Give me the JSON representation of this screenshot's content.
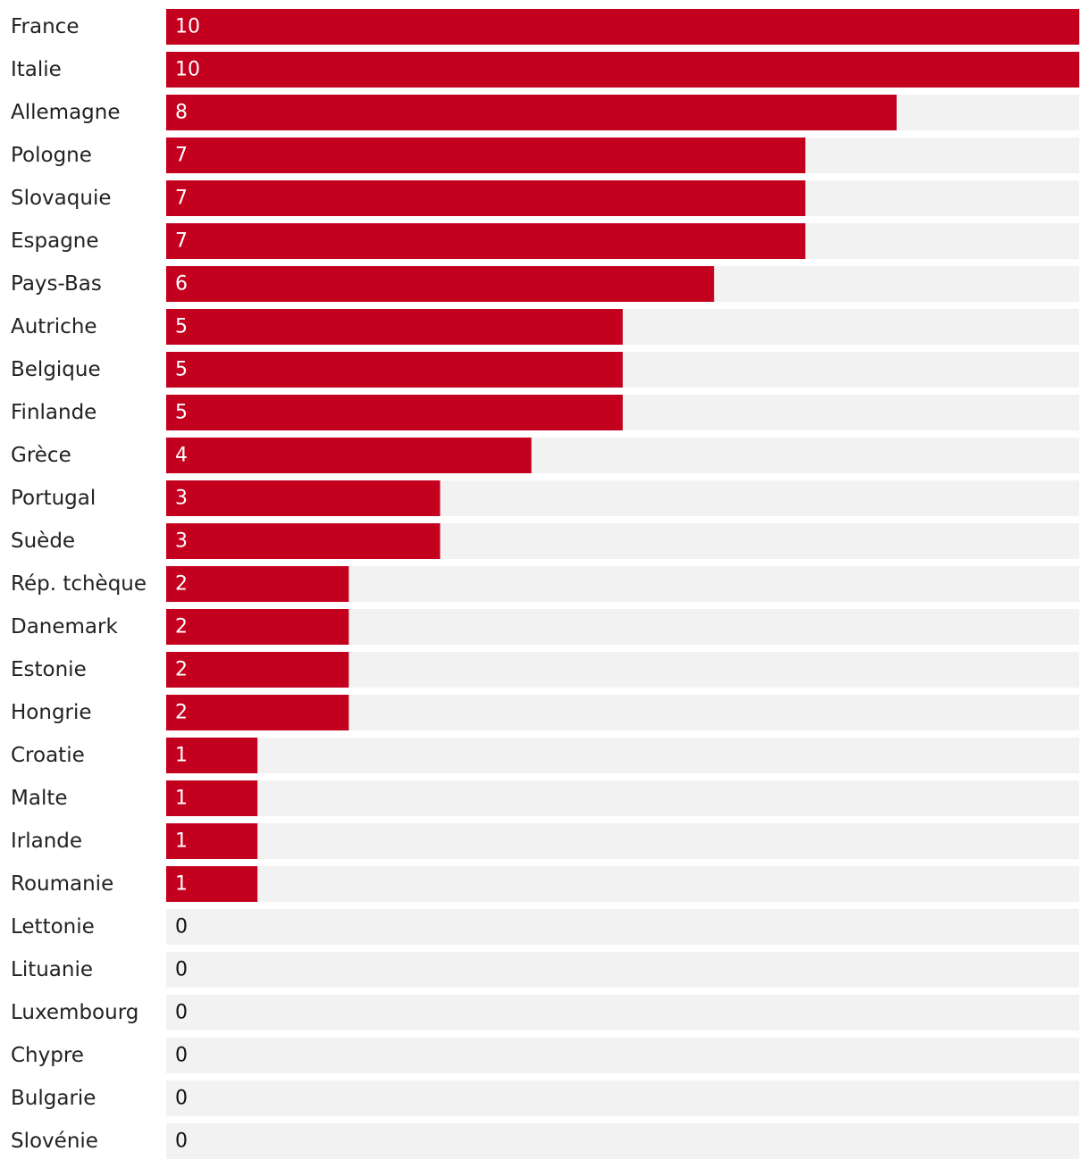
{
  "chart_data": {
    "type": "bar",
    "orientation": "horizontal",
    "categories": [
      "France",
      "Italie",
      "Allemagne",
      "Pologne",
      "Slovaquie",
      "Espagne",
      "Pays-Bas",
      "Autriche",
      "Belgique",
      "Finlande",
      "Grèce",
      "Portugal",
      "Suède",
      "Rép. tchèque",
      "Danemark",
      "Estonie",
      "Hongrie",
      "Croatie",
      "Malte",
      "Irlande",
      "Roumanie",
      "Lettonie",
      "Lituanie",
      "Luxembourg",
      "Chypre",
      "Bulgarie",
      "Slovénie"
    ],
    "values": [
      10,
      10,
      8,
      7,
      7,
      7,
      6,
      5,
      5,
      5,
      4,
      3,
      3,
      2,
      2,
      2,
      2,
      1,
      1,
      1,
      1,
      0,
      0,
      0,
      0,
      0,
      0
    ],
    "title": "",
    "xlabel": "",
    "ylabel": "",
    "xlim": [
      0,
      10
    ],
    "grid": false,
    "legend": "none",
    "data_labels": true
  },
  "colors": {
    "bar": "#c4001f",
    "track": "#f2f2f2",
    "label_on_bar": "#ffffff",
    "label_off_bar": "#111111",
    "category_text": "#222222"
  }
}
